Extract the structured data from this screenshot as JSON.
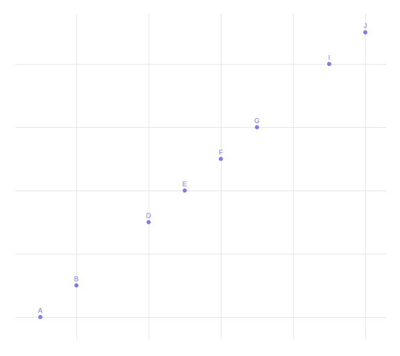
{
  "chart_data": {
    "type": "scatter",
    "title": "",
    "xlabel": "",
    "ylabel": "",
    "xlim": [
      0.1,
      5.25
    ],
    "ylim": [
      -0.35,
      8.1
    ],
    "x_gridlines": [
      1,
      2,
      3,
      4,
      5
    ],
    "y_gridlines": [
      0,
      2,
      4,
      6,
      8
    ],
    "grid": true,
    "tick_labels_visible": false,
    "point_color": "#7c7cf0",
    "label_color": "#7c7cf0",
    "grid_color": "#e6e6e6",
    "points": [
      {
        "label": "A",
        "x": 0.5,
        "y": 0
      },
      {
        "label": "B",
        "x": 1.0,
        "y": 1
      },
      {
        "label": "D",
        "x": 2.0,
        "y": 3
      },
      {
        "label": "E",
        "x": 2.5,
        "y": 4
      },
      {
        "label": "F",
        "x": 3.0,
        "y": 5
      },
      {
        "label": "G",
        "x": 3.5,
        "y": 6
      },
      {
        "label": "I",
        "x": 4.5,
        "y": 8
      },
      {
        "label": "J",
        "x": 5.0,
        "y": 9
      }
    ]
  }
}
